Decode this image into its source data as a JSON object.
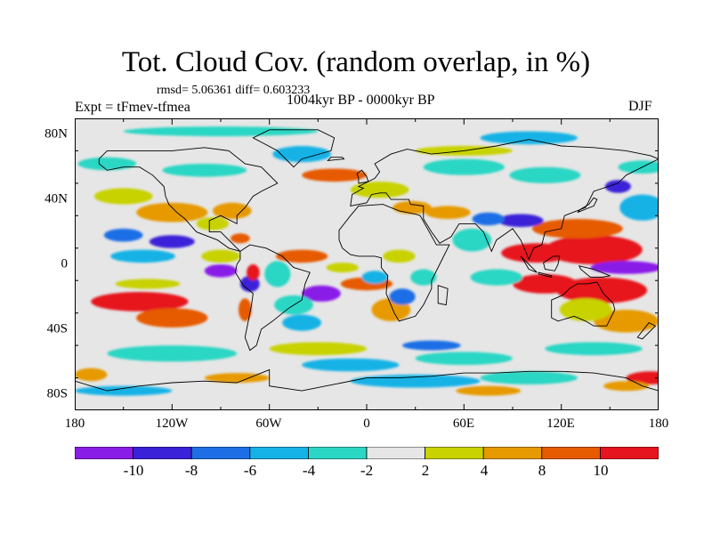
{
  "title": "Tot. Cloud Cov. (random overlap, in %)",
  "stats": "rmsd= 5.06361 diff= 0.603233",
  "experiment": "Expt = tFmev-tfmea",
  "period": "1004kyr BP - 0000kyr BP",
  "season": "DJF",
  "axes": {
    "x_ticks": [
      "180",
      "120W",
      "60W",
      "0",
      "60E",
      "120E",
      "180"
    ],
    "y_ticks": [
      "80N",
      "40N",
      "0",
      "40S",
      "80S"
    ]
  },
  "colorbar": {
    "labels": [
      "-10",
      "-8",
      "-6",
      "-4",
      "-2",
      "2",
      "4",
      "8",
      "10"
    ],
    "colors": [
      "#8a1ce8",
      "#3a22d8",
      "#1e6ee6",
      "#14b2e6",
      "#2ad6c4",
      "#e6e6e6",
      "#c8d200",
      "#e69a00",
      "#e65a00",
      "#e6141e"
    ]
  },
  "map": {
    "background_color": "#e6e6e6",
    "blobs": [
      {
        "lon": 0,
        "lat": 10,
        "a": 0,
        "b": 0,
        "c": 0
      },
      {
        "lon": 105,
        "lat": 7,
        "rx": 22,
        "ry": 6,
        "c": 9
      },
      {
        "lon": 140,
        "lat": 9,
        "rx": 30,
        "ry": 9,
        "c": 9
      },
      {
        "lon": 130,
        "lat": 22,
        "rx": 28,
        "ry": 6,
        "c": 8
      },
      {
        "lon": 110,
        "lat": -12,
        "rx": 20,
        "ry": 6,
        "c": 9
      },
      {
        "lon": 145,
        "lat": -16,
        "rx": 28,
        "ry": 8,
        "c": 9
      },
      {
        "lon": 160,
        "lat": -35,
        "rx": 20,
        "ry": 7,
        "c": 7
      },
      {
        "lon": 135,
        "lat": -28,
        "rx": 16,
        "ry": 7,
        "c": 6
      },
      {
        "lon": 160,
        "lat": -2,
        "rx": 22,
        "ry": 4,
        "c": 0
      },
      {
        "lon": 95,
        "lat": 27,
        "rx": 14,
        "ry": 4,
        "c": 1
      },
      {
        "lon": 75,
        "lat": 28,
        "rx": 10,
        "ry": 4,
        "c": 2
      },
      {
        "lon": 65,
        "lat": 15,
        "rx": 12,
        "ry": 7,
        "c": 4
      },
      {
        "lon": 80,
        "lat": -8,
        "rx": 16,
        "ry": 5,
        "c": 4
      },
      {
        "lon": 170,
        "lat": 35,
        "rx": 14,
        "ry": 8,
        "c": 3
      },
      {
        "lon": -140,
        "lat": -23,
        "rx": 30,
        "ry": 6,
        "c": 9
      },
      {
        "lon": -120,
        "lat": -33,
        "rx": 22,
        "ry": 6,
        "c": 8
      },
      {
        "lon": -135,
        "lat": -12,
        "rx": 20,
        "ry": 3,
        "c": 6
      },
      {
        "lon": -138,
        "lat": 5,
        "rx": 20,
        "ry": 4,
        "c": 3
      },
      {
        "lon": -120,
        "lat": 14,
        "rx": 14,
        "ry": 4,
        "c": 1
      },
      {
        "lon": -150,
        "lat": 18,
        "rx": 12,
        "ry": 4,
        "c": 2
      },
      {
        "lon": -90,
        "lat": -4,
        "rx": 10,
        "ry": 4,
        "c": 0
      },
      {
        "lon": -72,
        "lat": -12,
        "rx": 6,
        "ry": 5,
        "c": 1
      },
      {
        "lon": -75,
        "lat": -28,
        "rx": 4,
        "ry": 7,
        "c": 8
      },
      {
        "lon": -70,
        "lat": -5,
        "rx": 4,
        "ry": 5,
        "c": 9
      },
      {
        "lon": -78,
        "lat": 16,
        "rx": 6,
        "ry": 3,
        "c": 8
      },
      {
        "lon": -83,
        "lat": 33,
        "rx": 12,
        "ry": 5,
        "c": 7
      },
      {
        "lon": -120,
        "lat": 32,
        "rx": 22,
        "ry": 6,
        "c": 7
      },
      {
        "lon": -150,
        "lat": 42,
        "rx": 18,
        "ry": 5,
        "c": 6
      },
      {
        "lon": -95,
        "lat": 25,
        "rx": 10,
        "ry": 4,
        "c": 6
      },
      {
        "lon": -90,
        "lat": 5,
        "rx": 12,
        "ry": 4,
        "c": 6
      },
      {
        "lon": -40,
        "lat": 5,
        "rx": 16,
        "ry": 4,
        "c": 8
      },
      {
        "lon": -15,
        "lat": -2,
        "rx": 10,
        "ry": 3,
        "c": 6
      },
      {
        "lon": 0,
        "lat": -12,
        "rx": 16,
        "ry": 4,
        "c": 8
      },
      {
        "lon": 15,
        "lat": -28,
        "rx": 12,
        "ry": 7,
        "c": 7
      },
      {
        "lon": 22,
        "lat": -20,
        "rx": 8,
        "ry": 5,
        "c": 2
      },
      {
        "lon": 5,
        "lat": -8,
        "rx": 8,
        "ry": 4,
        "c": 3
      },
      {
        "lon": -28,
        "lat": -18,
        "rx": 12,
        "ry": 5,
        "c": 0
      },
      {
        "lon": -40,
        "lat": -36,
        "rx": 12,
        "ry": 5,
        "c": 3
      },
      {
        "lon": 28,
        "lat": 35,
        "rx": 12,
        "ry": 4,
        "c": 7
      },
      {
        "lon": 8,
        "lat": 46,
        "rx": 18,
        "ry": 5,
        "c": 6
      },
      {
        "lon": 50,
        "lat": 32,
        "rx": 14,
        "ry": 4,
        "c": 7
      },
      {
        "lon": 20,
        "lat": 5,
        "rx": 10,
        "ry": 4,
        "c": 6
      },
      {
        "lon": 35,
        "lat": -8,
        "rx": 8,
        "ry": 5,
        "c": 4
      },
      {
        "lon": -55,
        "lat": -6,
        "rx": 8,
        "ry": 8,
        "c": 4
      },
      {
        "lon": -45,
        "lat": -25,
        "rx": 12,
        "ry": 6,
        "c": 4
      },
      {
        "lon": -100,
        "lat": 58,
        "rx": 26,
        "ry": 4,
        "c": 4
      },
      {
        "lon": -40,
        "lat": 68,
        "rx": 18,
        "ry": 5,
        "c": 3
      },
      {
        "lon": -20,
        "lat": 55,
        "rx": 20,
        "ry": 4,
        "c": 8
      },
      {
        "lon": 60,
        "lat": 60,
        "rx": 25,
        "ry": 5,
        "c": 4
      },
      {
        "lon": 110,
        "lat": 55,
        "rx": 22,
        "ry": 5,
        "c": 4
      },
      {
        "lon": 60,
        "lat": 70,
        "rx": 30,
        "ry": 3,
        "c": 6
      },
      {
        "lon": -90,
        "lat": 82,
        "rx": 60,
        "ry": 3,
        "c": 4
      },
      {
        "lon": 100,
        "lat": 78,
        "rx": 30,
        "ry": 4,
        "c": 3
      },
      {
        "lon": -160,
        "lat": 62,
        "rx": 18,
        "ry": 4,
        "c": 4
      },
      {
        "lon": 170,
        "lat": 60,
        "rx": 15,
        "ry": 4,
        "c": 4
      },
      {
        "lon": 155,
        "lat": 48,
        "rx": 8,
        "ry": 4,
        "c": 1
      },
      {
        "lon": -120,
        "lat": -55,
        "rx": 40,
        "ry": 5,
        "c": 4
      },
      {
        "lon": -30,
        "lat": -52,
        "rx": 30,
        "ry": 4,
        "c": 6
      },
      {
        "lon": 40,
        "lat": -50,
        "rx": 18,
        "ry": 3,
        "c": 2
      },
      {
        "lon": 60,
        "lat": -58,
        "rx": 30,
        "ry": 4,
        "c": 4
      },
      {
        "lon": 140,
        "lat": -52,
        "rx": 30,
        "ry": 4,
        "c": 4
      },
      {
        "lon": -10,
        "lat": -62,
        "rx": 30,
        "ry": 4,
        "c": 3
      },
      {
        "lon": 175,
        "lat": -70,
        "rx": 15,
        "ry": 4,
        "c": 9
      },
      {
        "lon": 160,
        "lat": -75,
        "rx": 14,
        "ry": 3,
        "c": 7
      },
      {
        "lon": -170,
        "lat": -68,
        "rx": 10,
        "ry": 4,
        "c": 7
      },
      {
        "lon": -80,
        "lat": -70,
        "rx": 20,
        "ry": 3,
        "c": 7
      },
      {
        "lon": 30,
        "lat": -72,
        "rx": 40,
        "ry": 4,
        "c": 3
      },
      {
        "lon": 100,
        "lat": -70,
        "rx": 30,
        "ry": 4,
        "c": 4
      },
      {
        "lon": -150,
        "lat": -78,
        "rx": 30,
        "ry": 3,
        "c": 3
      },
      {
        "lon": 75,
        "lat": -78,
        "rx": 20,
        "ry": 3,
        "c": 7
      }
    ],
    "continents": [
      [
        [
          -165,
          65
        ],
        [
          -160,
          70
        ],
        [
          -140,
          70
        ],
        [
          -120,
          70
        ],
        [
          -100,
          72
        ],
        [
          -85,
          70
        ],
        [
          -75,
          62
        ],
        [
          -65,
          60
        ],
        [
          -55,
          50
        ],
        [
          -65,
          45
        ],
        [
          -70,
          42
        ],
        [
          -75,
          35
        ],
        [
          -80,
          30
        ],
        [
          -80,
          25
        ],
        [
          -90,
          30
        ],
        [
          -97,
          27
        ],
        [
          -97,
          20
        ],
        [
          -90,
          20
        ],
        [
          -85,
          15
        ],
        [
          -80,
          10
        ],
        [
          -78,
          8
        ],
        [
          -85,
          10
        ],
        [
          -92,
          15
        ],
        [
          -105,
          20
        ],
        [
          -112,
          28
        ],
        [
          -117,
          32
        ],
        [
          -122,
          37
        ],
        [
          -124,
          42
        ],
        [
          -125,
          48
        ],
        [
          -132,
          55
        ],
        [
          -140,
          60
        ],
        [
          -150,
          60
        ],
        [
          -160,
          58
        ],
        [
          -165,
          62
        ]
      ],
      [
        [
          -78,
          8
        ],
        [
          -72,
          12
        ],
        [
          -62,
          10
        ],
        [
          -52,
          5
        ],
        [
          -45,
          -2
        ],
        [
          -35,
          -5
        ],
        [
          -38,
          -12
        ],
        [
          -40,
          -22
        ],
        [
          -48,
          -27
        ],
        [
          -58,
          -35
        ],
        [
          -65,
          -40
        ],
        [
          -68,
          -50
        ],
        [
          -72,
          -53
        ],
        [
          -75,
          -45
        ],
        [
          -73,
          -35
        ],
        [
          -71,
          -25
        ],
        [
          -70,
          -18
        ],
        [
          -76,
          -13
        ],
        [
          -81,
          -5
        ],
        [
          -80,
          0
        ],
        [
          -78,
          3
        ]
      ],
      [
        [
          -17,
          15
        ],
        [
          -17,
          21
        ],
        [
          -10,
          30
        ],
        [
          -5,
          36
        ],
        [
          10,
          37
        ],
        [
          20,
          33
        ],
        [
          30,
          31
        ],
        [
          33,
          30
        ],
        [
          43,
          12
        ],
        [
          51,
          12
        ],
        [
          45,
          0
        ],
        [
          40,
          -10
        ],
        [
          40,
          -15
        ],
        [
          35,
          -25
        ],
        [
          30,
          -32
        ],
        [
          20,
          -35
        ],
        [
          17,
          -30
        ],
        [
          12,
          -18
        ],
        [
          13,
          -7
        ],
        [
          9,
          -2
        ],
        [
          9,
          4
        ],
        [
          5,
          5
        ],
        [
          -5,
          5
        ],
        [
          -10,
          6
        ],
        [
          -15,
          10
        ]
      ],
      [
        [
          -10,
          36
        ],
        [
          -9,
          43
        ],
        [
          -2,
          47
        ],
        [
          -5,
          48
        ],
        [
          5,
          53
        ],
        [
          8,
          57
        ],
        [
          5,
          62
        ],
        [
          15,
          68
        ],
        [
          25,
          71
        ],
        [
          40,
          68
        ],
        [
          60,
          70
        ],
        [
          80,
          73
        ],
        [
          100,
          77
        ],
        [
          120,
          73
        ],
        [
          140,
          72
        ],
        [
          160,
          70
        ],
        [
          175,
          67
        ],
        [
          180,
          65
        ],
        [
          170,
          60
        ],
        [
          160,
          55
        ],
        [
          155,
          50
        ],
        [
          140,
          45
        ],
        [
          135,
          35
        ],
        [
          122,
          30
        ],
        [
          120,
          22
        ],
        [
          110,
          20
        ],
        [
          108,
          12
        ],
        [
          103,
          10
        ],
        [
          100,
          3
        ],
        [
          98,
          8
        ],
        [
          95,
          15
        ],
        [
          90,
          22
        ],
        [
          80,
          15
        ],
        [
          77,
          8
        ],
        [
          72,
          20
        ],
        [
          67,
          25
        ],
        [
          57,
          25
        ],
        [
          52,
          17
        ],
        [
          45,
          13
        ],
        [
          40,
          20
        ],
        [
          35,
          28
        ],
        [
          35,
          36
        ],
        [
          27,
          37
        ],
        [
          26,
          40
        ],
        [
          20,
          40
        ],
        [
          15,
          40
        ],
        [
          12,
          44
        ],
        [
          8,
          44
        ],
        [
          3,
          43
        ],
        [
          0,
          38
        ]
      ],
      [
        [
          114,
          -22
        ],
        [
          114,
          -33
        ],
        [
          118,
          -35
        ],
        [
          128,
          -32
        ],
        [
          135,
          -35
        ],
        [
          140,
          -38
        ],
        [
          148,
          -38
        ],
        [
          153,
          -28
        ],
        [
          152,
          -24
        ],
        [
          146,
          -18
        ],
        [
          142,
          -11
        ],
        [
          136,
          -12
        ],
        [
          130,
          -12
        ],
        [
          125,
          -15
        ],
        [
          121,
          -19
        ]
      ],
      [
        [
          -45,
          60
        ],
        [
          -40,
          65
        ],
        [
          -22,
          70
        ],
        [
          -20,
          78
        ],
        [
          -30,
          83
        ],
        [
          -60,
          83
        ],
        [
          -70,
          78
        ],
        [
          -55,
          70
        ],
        [
          -50,
          65
        ]
      ],
      [
        [
          -180,
          -72
        ],
        [
          -160,
          -78
        ],
        [
          -140,
          -75
        ],
        [
          -120,
          -73
        ],
        [
          -100,
          -72
        ],
        [
          -80,
          -73
        ],
        [
          -60,
          -65
        ],
        [
          -60,
          -75
        ],
        [
          -40,
          -78
        ],
        [
          -20,
          -74
        ],
        [
          0,
          -70
        ],
        [
          20,
          -70
        ],
        [
          40,
          -69
        ],
        [
          60,
          -67
        ],
        [
          80,
          -67
        ],
        [
          100,
          -66
        ],
        [
          120,
          -66
        ],
        [
          140,
          -67
        ],
        [
          160,
          -70
        ],
        [
          170,
          -75
        ],
        [
          180,
          -78
        ],
        [
          180,
          -90
        ],
        [
          -180,
          -90
        ]
      ],
      [
        [
          95,
          5
        ],
        [
          100,
          0
        ],
        [
          105,
          -5
        ],
        [
          100,
          -3
        ],
        [
          97,
          2
        ]
      ],
      [
        [
          109,
          1
        ],
        [
          115,
          5
        ],
        [
          119,
          5
        ],
        [
          118,
          0
        ],
        [
          116,
          -4
        ],
        [
          110,
          -3
        ]
      ],
      [
        [
          131,
          -1
        ],
        [
          140,
          -3
        ],
        [
          150,
          -7
        ],
        [
          145,
          -8
        ],
        [
          138,
          -8
        ],
        [
          132,
          -3
        ]
      ],
      [
        [
          106,
          -6
        ],
        [
          114,
          -8
        ],
        [
          114,
          -7
        ],
        [
          106,
          -5
        ]
      ],
      [
        [
          130,
          32
        ],
        [
          135,
          34
        ],
        [
          140,
          36
        ],
        [
          142,
          40
        ],
        [
          140,
          41
        ],
        [
          137,
          37
        ],
        [
          132,
          34
        ]
      ],
      [
        [
          -5,
          50
        ],
        [
          1,
          51
        ],
        [
          0,
          54
        ],
        [
          -3,
          58
        ],
        [
          -6,
          56
        ],
        [
          -5,
          53
        ]
      ],
      [
        [
          44,
          -13
        ],
        [
          50,
          -15
        ],
        [
          49,
          -25
        ],
        [
          44,
          -24
        ]
      ],
      [
        [
          167,
          -45
        ],
        [
          174,
          -36
        ],
        [
          178,
          -38
        ],
        [
          170,
          -46
        ]
      ],
      [
        [
          -24,
          64
        ],
        [
          -14,
          65
        ],
        [
          -15,
          66
        ],
        [
          -22,
          66
        ]
      ]
    ]
  }
}
